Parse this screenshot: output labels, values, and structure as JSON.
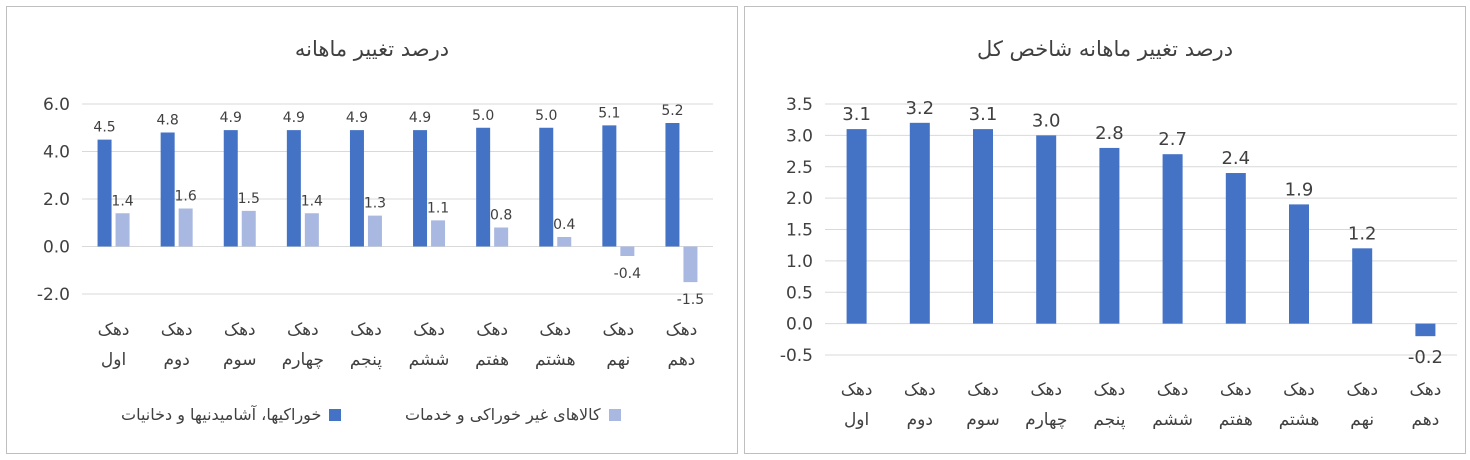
{
  "colors": {
    "food": "#4472c4",
    "nonfood": "#a9b8e0",
    "total": "#4472c4",
    "grid": "#d9d9d9",
    "text": "#404040"
  },
  "chart_data": [
    {
      "type": "bar",
      "title": "درصد تغییر ماهانه",
      "categories": [
        [
          "دهک",
          "اول"
        ],
        [
          "دهک",
          "دوم"
        ],
        [
          "دهک",
          "سوم"
        ],
        [
          "دهک",
          "چهارم"
        ],
        [
          "دهک",
          "پنجم"
        ],
        [
          "دهک",
          "ششم"
        ],
        [
          "دهک",
          "هفتم"
        ],
        [
          "دهک",
          "هشتم"
        ],
        [
          "دهک",
          "نهم"
        ],
        [
          "دهک",
          "دهم"
        ]
      ],
      "series": [
        {
          "name": "خوراکیها، آشامیدنیها و دخانیات",
          "values": [
            4.5,
            4.8,
            4.9,
            4.9,
            4.9,
            4.9,
            5.0,
            5.0,
            5.1,
            5.2
          ]
        },
        {
          "name": "کالاهای غیر خوراکی و خدمات",
          "values": [
            1.4,
            1.6,
            1.5,
            1.4,
            1.3,
            1.1,
            0.8,
            0.4,
            -0.4,
            -1.5
          ]
        }
      ],
      "ylim": [
        -2.0,
        6.0
      ],
      "yticks": [
        "6.0",
        "4.0",
        "2.0",
        "0.0",
        "-2.0"
      ],
      "legend_position": "bottom",
      "grid": true
    },
    {
      "type": "bar",
      "title": "درصد تغییر ماهانه شاخص کل",
      "categories": [
        [
          "دهک",
          "اول"
        ],
        [
          "دهک",
          "دوم"
        ],
        [
          "دهک",
          "سوم"
        ],
        [
          "دهک",
          "چهارم"
        ],
        [
          "دهک",
          "پنجم"
        ],
        [
          "دهک",
          "ششم"
        ],
        [
          "دهک",
          "هفتم"
        ],
        [
          "دهک",
          "هشتم"
        ],
        [
          "دهک",
          "نهم"
        ],
        [
          "دهک",
          "دهم"
        ]
      ],
      "series": [
        {
          "values": [
            3.1,
            3.2,
            3.1,
            3.0,
            2.8,
            2.7,
            2.4,
            1.9,
            1.2,
            -0.2
          ]
        }
      ],
      "ylim": [
        -0.5,
        3.5
      ],
      "yticks": [
        "3.5",
        "3.0",
        "2.5",
        "2.0",
        "1.5",
        "1.0",
        "0.5",
        "0.0",
        "-0.5"
      ],
      "legend_position": "none",
      "grid": true
    }
  ]
}
